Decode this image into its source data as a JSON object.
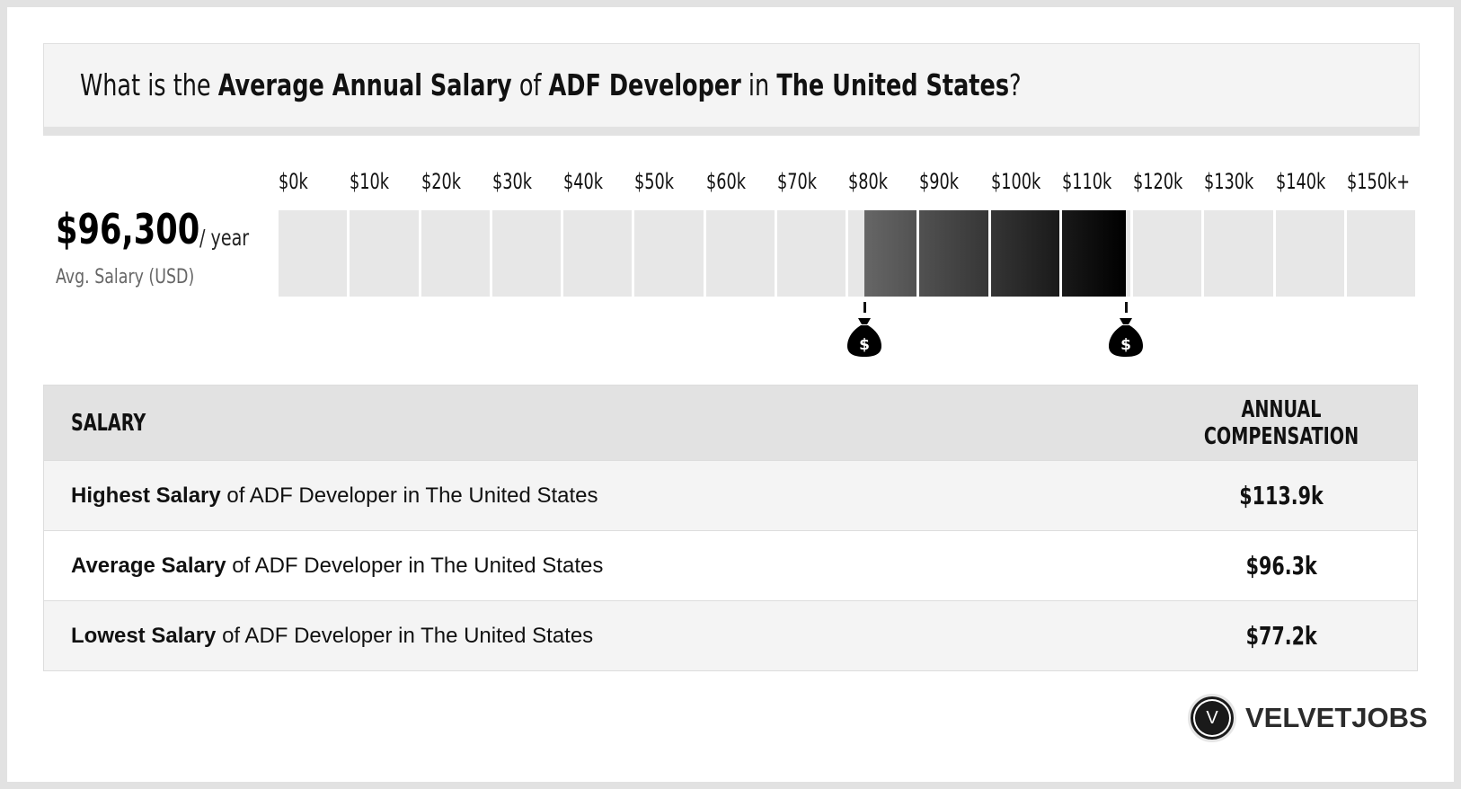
{
  "header": {
    "q_pre": "What is the ",
    "q_b1": "Average Annual Salary",
    "q_mid1": " of ",
    "q_b2": "ADF Developer",
    "q_mid2": " in ",
    "q_b3": "The United States",
    "q_end": "?"
  },
  "summary": {
    "value": "$96,300",
    "unit": "/ year",
    "label": "Avg. Salary (USD)"
  },
  "chart_data": {
    "type": "bar",
    "ticks": [
      "$0k",
      "$10k",
      "$20k",
      "$30k",
      "$40k",
      "$50k",
      "$60k",
      "$70k",
      "$80k",
      "$90k",
      "$100k",
      "$110k",
      "$120k",
      "$130k",
      "$140k",
      "$150k+"
    ],
    "range_low": 77.2,
    "range_high": 113.9,
    "average": 96.3,
    "unit": "k USD",
    "colors": {
      "empty": "#e7e7e7",
      "light": "#666666",
      "dark": "#000000"
    },
    "markers": [
      "money-bag-icon",
      "money-bag-icon"
    ]
  },
  "table": {
    "headers": [
      "SALARY",
      "ANNUAL COMPENSATION"
    ],
    "rows": [
      {
        "bold": "Highest Salary",
        "rest": " of ADF Developer in The United States",
        "value": "$113.9k"
      },
      {
        "bold": "Average Salary",
        "rest": " of ADF Developer in The United States",
        "value": "$96.3k"
      },
      {
        "bold": "Lowest Salary",
        "rest": " of ADF Developer in The United States",
        "value": "$77.2k"
      }
    ]
  },
  "logo": {
    "mark": "V",
    "brand": "VELVETJOBS"
  }
}
